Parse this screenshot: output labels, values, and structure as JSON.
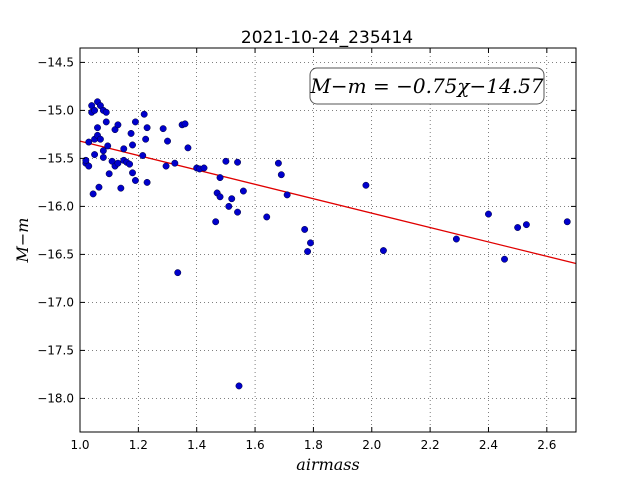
{
  "chart_data": {
    "type": "scatter",
    "title": "2021-10-24_235414",
    "xlabel": "airmass",
    "ylabel": "M−m",
    "xlim": [
      1.0,
      2.7
    ],
    "ylim": [
      -18.35,
      -14.35
    ],
    "y_inverted": true,
    "grid": true,
    "xticks": [
      1.0,
      1.2,
      1.4,
      1.6,
      1.8,
      2.0,
      2.2,
      2.4,
      2.6
    ],
    "xtick_labels": [
      "1.0",
      "1.2",
      "1.4",
      "1.6",
      "1.8",
      "2.0",
      "2.2",
      "2.4",
      "2.6"
    ],
    "yticks": [
      -14.5,
      -15.0,
      -15.5,
      -16.0,
      -16.5,
      -17.0,
      -17.5,
      -18.0
    ],
    "ytick_labels": [
      "−14.5",
      "−15.0",
      "−15.5",
      "−16.0",
      "−16.5",
      "−17.0",
      "−17.5",
      "−18.0"
    ],
    "annotation": "M−m = −0.75χ−14.57",
    "point_color": "#0000cc",
    "fit_color": "#e00000",
    "fit": {
      "slope": -0.75,
      "intercept": -14.57
    },
    "points": [
      [
        1.02,
        -15.55
      ],
      [
        1.03,
        -15.33
      ],
      [
        1.02,
        -15.52
      ],
      [
        1.03,
        -15.58
      ],
      [
        1.04,
        -14.95
      ],
      [
        1.04,
        -15.02
      ],
      [
        1.05,
        -15.0
      ],
      [
        1.05,
        -15.3
      ],
      [
        1.05,
        -15.46
      ],
      [
        1.045,
        -15.87
      ],
      [
        1.06,
        -14.91
      ],
      [
        1.06,
        -15.18
      ],
      [
        1.06,
        -15.26
      ],
      [
        1.065,
        -15.8
      ],
      [
        1.07,
        -14.95
      ],
      [
        1.07,
        -15.3
      ],
      [
        1.08,
        -15.0
      ],
      [
        1.08,
        -15.42
      ],
      [
        1.08,
        -15.49
      ],
      [
        1.09,
        -15.02
      ],
      [
        1.09,
        -15.12
      ],
      [
        1.095,
        -15.37
      ],
      [
        1.1,
        -15.66
      ],
      [
        1.11,
        -15.53
      ],
      [
        1.12,
        -15.58
      ],
      [
        1.12,
        -15.2
      ],
      [
        1.13,
        -15.15
      ],
      [
        1.13,
        -15.55
      ],
      [
        1.14,
        -15.81
      ],
      [
        1.15,
        -15.4
      ],
      [
        1.15,
        -15.52
      ],
      [
        1.16,
        -15.54
      ],
      [
        1.17,
        -15.56
      ],
      [
        1.175,
        -15.24
      ],
      [
        1.18,
        -15.36
      ],
      [
        1.18,
        -15.65
      ],
      [
        1.19,
        -15.12
      ],
      [
        1.19,
        -15.73
      ],
      [
        1.215,
        -15.47
      ],
      [
        1.22,
        -15.04
      ],
      [
        1.225,
        -15.3
      ],
      [
        1.23,
        -15.18
      ],
      [
        1.23,
        -15.75
      ],
      [
        1.285,
        -15.19
      ],
      [
        1.295,
        -15.58
      ],
      [
        1.3,
        -15.32
      ],
      [
        1.325,
        -15.55
      ],
      [
        1.335,
        -16.69
      ],
      [
        1.35,
        -15.15
      ],
      [
        1.36,
        -15.14
      ],
      [
        1.37,
        -15.39
      ],
      [
        1.4,
        -15.6
      ],
      [
        1.41,
        -15.61
      ],
      [
        1.425,
        -15.6
      ],
      [
        1.465,
        -16.16
      ],
      [
        1.47,
        -15.86
      ],
      [
        1.48,
        -15.9
      ],
      [
        1.48,
        -15.7
      ],
      [
        1.5,
        -15.53
      ],
      [
        1.51,
        -16.0
      ],
      [
        1.52,
        -15.92
      ],
      [
        1.54,
        -15.54
      ],
      [
        1.54,
        -16.06
      ],
      [
        1.545,
        -17.87
      ],
      [
        1.56,
        -15.84
      ],
      [
        1.64,
        -16.11
      ],
      [
        1.68,
        -15.55
      ],
      [
        1.69,
        -15.67
      ],
      [
        1.71,
        -15.88
      ],
      [
        1.77,
        -16.24
      ],
      [
        1.78,
        -16.47
      ],
      [
        1.79,
        -16.38
      ],
      [
        1.98,
        -15.78
      ],
      [
        2.04,
        -16.46
      ],
      [
        2.29,
        -16.34
      ],
      [
        2.4,
        -16.08
      ],
      [
        2.455,
        -16.55
      ],
      [
        2.5,
        -16.22
      ],
      [
        2.53,
        -16.19
      ],
      [
        2.67,
        -16.16
      ]
    ]
  }
}
